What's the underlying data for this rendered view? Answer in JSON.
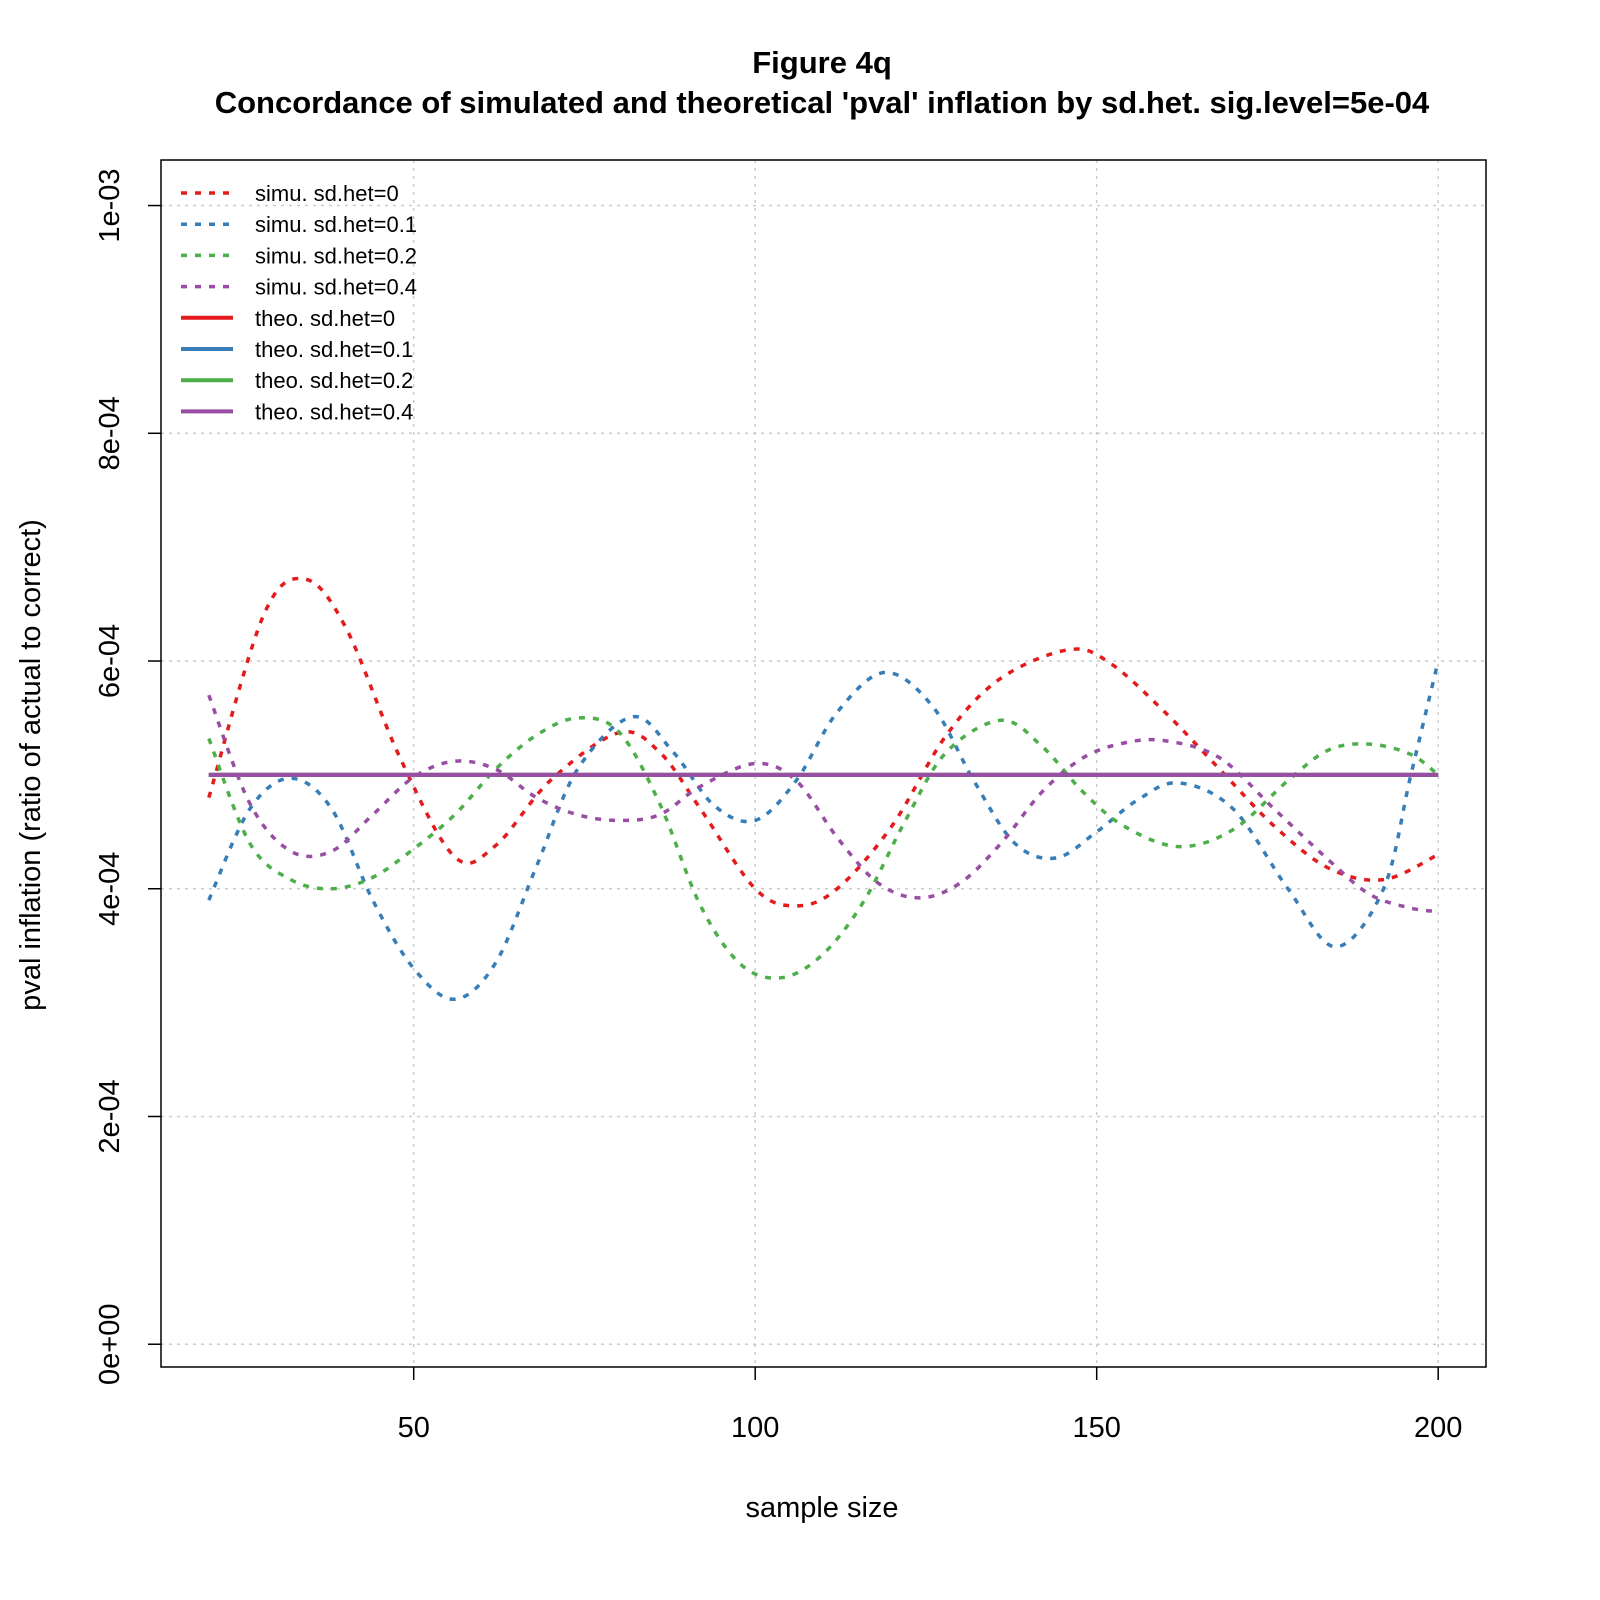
{
  "chart_data": {
    "type": "line",
    "title": "Figure 4q",
    "subtitle": "Concordance of simulated and theoretical 'pval' inflation by sd.het. sig.level=5e-04",
    "xlabel": "sample size",
    "ylabel": "pval inflation (ratio of actual to correct)",
    "xlim": [
      13,
      207
    ],
    "ylim": [
      -2e-05,
      0.00104
    ],
    "x_ticks": [
      50,
      100,
      150,
      200
    ],
    "x_tick_labels": [
      "50",
      "100",
      "150",
      "200"
    ],
    "y_ticks": [
      0,
      0.0002,
      0.0004,
      0.0006,
      0.0008,
      0.001
    ],
    "y_tick_labels": [
      "0e+00",
      "2e-04",
      "4e-04",
      "6e-04",
      "8e-04",
      "1e-03"
    ],
    "grid": true,
    "legend_position": "top-left",
    "series": [
      {
        "name": "simu. sd.het=0",
        "style": "dashed",
        "color": "#e41a1c",
        "x": [
          20,
          28,
          34,
          40,
          48,
          56,
          62,
          70,
          80,
          86,
          92,
          100,
          106,
          112,
          120,
          128,
          136,
          146,
          152,
          160,
          168,
          176,
          184,
          192,
          200
        ],
        "y": [
          0.00048,
          0.00064,
          0.000672,
          0.00063,
          0.000515,
          0.000428,
          0.000438,
          0.000495,
          0.000537,
          0.00052,
          0.00047,
          0.0004,
          0.000385,
          0.0004,
          0.000455,
          0.000535,
          0.000585,
          0.00061,
          0.000598,
          0.000555,
          0.000505,
          0.000455,
          0.000418,
          0.000408,
          0.00043
        ]
      },
      {
        "name": "simu. sd.het=0.1",
        "style": "dashed",
        "color": "#377eb8",
        "x": [
          20,
          26,
          32,
          38,
          44,
          50,
          56,
          62,
          68,
          74,
          82,
          88,
          94,
          100,
          106,
          112,
          119,
          126,
          132,
          138,
          144,
          150,
          156,
          162,
          170,
          178,
          185,
          192,
          196,
          200
        ],
        "y": [
          0.00039,
          0.00047,
          0.000497,
          0.00047,
          0.00039,
          0.00033,
          0.000303,
          0.000335,
          0.00042,
          0.000505,
          0.000551,
          0.00052,
          0.000473,
          0.00046,
          0.000495,
          0.000555,
          0.00059,
          0.00056,
          0.000495,
          0.00044,
          0.000427,
          0.00045,
          0.000478,
          0.000493,
          0.00047,
          0.0004,
          0.000349,
          0.0004,
          0.0005,
          0.0006
        ]
      },
      {
        "name": "simu. sd.het=0.2",
        "style": "dashed",
        "color": "#4daf4a",
        "x": [
          20,
          26,
          32,
          38,
          44,
          50,
          56,
          62,
          68,
          74,
          80,
          86,
          92,
          98,
          104,
          110,
          116,
          122,
          128,
          136,
          142,
          148,
          154,
          162,
          170,
          178,
          184,
          190,
          196,
          200
        ],
        "y": [
          0.000532,
          0.00044,
          0.000408,
          0.0004,
          0.00041,
          0.000435,
          0.000465,
          0.000505,
          0.000535,
          0.00055,
          0.000538,
          0.000475,
          0.000385,
          0.000333,
          0.000322,
          0.000343,
          0.00039,
          0.00046,
          0.00052,
          0.000548,
          0.000525,
          0.000485,
          0.000455,
          0.000437,
          0.000452,
          0.000495,
          0.000522,
          0.000527,
          0.000518,
          0.0005
        ]
      },
      {
        "name": "simu. sd.het=0.4",
        "style": "dashed",
        "color": "#984ea3",
        "x": [
          20,
          26,
          32,
          38,
          44,
          50,
          56,
          62,
          68,
          74,
          80,
          86,
          92,
          100,
          106,
          112,
          118,
          124,
          130,
          136,
          142,
          148,
          154,
          160,
          168,
          176,
          184,
          190,
          196,
          200
        ],
        "y": [
          0.00057,
          0.000475,
          0.000433,
          0.000433,
          0.000465,
          0.000498,
          0.000512,
          0.000505,
          0.00048,
          0.000465,
          0.00046,
          0.000465,
          0.00049,
          0.00051,
          0.000495,
          0.000445,
          0.000405,
          0.000392,
          0.000405,
          0.00044,
          0.000485,
          0.000515,
          0.000528,
          0.00053,
          0.000515,
          0.00047,
          0.000425,
          0.000395,
          0.000383,
          0.00038
        ]
      },
      {
        "name": "theo. sd.het=0",
        "style": "solid",
        "color": "#e41a1c",
        "x": [
          20,
          200
        ],
        "y": [
          0.0005,
          0.0005
        ]
      },
      {
        "name": "theo. sd.het=0.1",
        "style": "solid",
        "color": "#377eb8",
        "x": [
          20,
          200
        ],
        "y": [
          0.0005,
          0.0005
        ]
      },
      {
        "name": "theo. sd.het=0.2",
        "style": "solid",
        "color": "#4daf4a",
        "x": [
          20,
          200
        ],
        "y": [
          0.0005,
          0.0005
        ]
      },
      {
        "name": "theo. sd.het=0.4",
        "style": "solid",
        "color": "#984ea3",
        "x": [
          20,
          200
        ],
        "y": [
          0.0005,
          0.0005
        ]
      }
    ]
  }
}
